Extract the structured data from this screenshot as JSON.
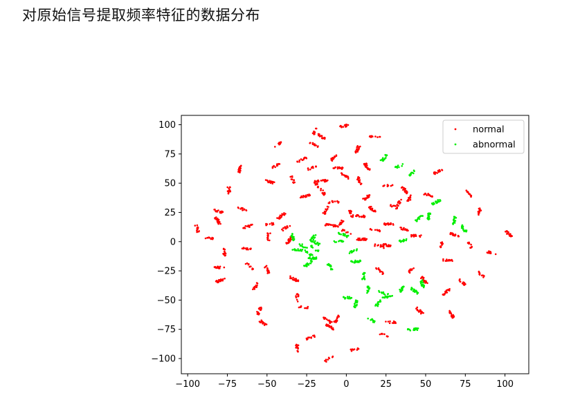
{
  "page": {
    "title": "对原始信号提取频率特征的数据分布"
  },
  "chart_data": {
    "type": "scatter",
    "title": "",
    "xlabel": "",
    "ylabel": "",
    "xlim": [
      -104,
      115
    ],
    "ylim": [
      -113,
      108
    ],
    "xticks": [
      -100,
      -75,
      -50,
      -25,
      0,
      25,
      50,
      75,
      100
    ],
    "xtick_labels": [
      "−100",
      "−75",
      "−50",
      "−25",
      "0",
      "25",
      "50",
      "75",
      "100"
    ],
    "yticks": [
      100,
      75,
      50,
      25,
      0,
      -25,
      -50,
      -75,
      -100
    ],
    "ytick_labels": [
      "100",
      "75",
      "50",
      "25",
      "0",
      "−25",
      "−50",
      "−75",
      "−100"
    ],
    "grid": false,
    "legend_position": "top-right",
    "series": [
      {
        "name": "normal",
        "color": "#ff0000",
        "marker": "small-dot",
        "clusters": [
          [
            -94,
            11
          ],
          [
            -87,
            3
          ],
          [
            -81,
            18
          ],
          [
            -81,
            26
          ],
          [
            -79,
            -33
          ],
          [
            -80,
            -22
          ],
          [
            -77,
            -9
          ],
          [
            -74,
            44
          ],
          [
            -67,
            62
          ],
          [
            -66,
            28
          ],
          [
            -62,
            13
          ],
          [
            -63,
            -6
          ],
          [
            -61,
            -21
          ],
          [
            -57,
            -38
          ],
          [
            -55,
            -59
          ],
          [
            -52,
            -70
          ],
          [
            -50,
            -24
          ],
          [
            -49,
            4
          ],
          [
            -48,
            15
          ],
          [
            -48,
            51
          ],
          [
            -44,
            65
          ],
          [
            -43,
            83
          ],
          [
            -41,
            22
          ],
          [
            -38,
            12
          ],
          [
            -36,
            1
          ],
          [
            -33,
            -32
          ],
          [
            -31,
            -48
          ],
          [
            -27,
            -56
          ],
          [
            -34,
            53
          ],
          [
            -28,
            70
          ],
          [
            -26,
            39
          ],
          [
            -22,
            63
          ],
          [
            -19,
            49
          ],
          [
            -15,
            52
          ],
          [
            -15,
            43
          ],
          [
            -13,
            27
          ],
          [
            -10,
            14
          ],
          [
            -8,
            34
          ],
          [
            -8,
            72
          ],
          [
            -5,
            63
          ],
          [
            -4,
            15
          ],
          [
            -1,
            99
          ],
          [
            -1,
            56
          ],
          [
            0,
            8
          ],
          [
            3,
            24
          ],
          [
            7,
            79
          ],
          [
            8,
            52
          ],
          [
            9,
            22
          ],
          [
            10,
            2
          ],
          [
            13,
            64
          ],
          [
            13,
            38
          ],
          [
            16,
            28
          ],
          [
            18,
            10
          ],
          [
            18,
            90
          ],
          [
            21,
            -4
          ],
          [
            21,
            -25
          ],
          [
            25,
            -3
          ],
          [
            27,
            15
          ],
          [
            26,
            48
          ],
          [
            28,
            -69
          ],
          [
            30,
            30
          ],
          [
            33,
            33
          ],
          [
            36,
            11
          ],
          [
            37,
            44
          ],
          [
            40,
            37
          ],
          [
            41,
            -24
          ],
          [
            44,
            5
          ],
          [
            46,
            -59
          ],
          [
            49,
            -33
          ],
          [
            52,
            40
          ],
          [
            58,
            60
          ],
          [
            60,
            -2
          ],
          [
            63,
            -43
          ],
          [
            64,
            -16
          ],
          [
            66,
            -62
          ],
          [
            68,
            6
          ],
          [
            73,
            -35
          ],
          [
            77,
            41
          ],
          [
            78,
            -3
          ],
          [
            84,
            26
          ],
          [
            85,
            -28
          ],
          [
            92,
            -10
          ],
          [
            102,
            7
          ],
          [
            -20,
            83
          ],
          [
            -16,
            90
          ],
          [
            -20,
            94
          ],
          [
            -6,
            -66
          ],
          [
            -12,
            -67
          ],
          [
            -23,
            -82
          ],
          [
            -11,
            -100
          ],
          [
            -10,
            -73
          ],
          [
            6,
            -92
          ],
          [
            24,
            -80
          ],
          [
            -31,
            -91
          ]
        ],
        "spread": 3
      },
      {
        "name": "abnormal",
        "color": "#00ee00",
        "marker": "small-dot",
        "clusters": [
          [
            -24,
            -10
          ],
          [
            -22,
            -14
          ],
          [
            -20,
            -6
          ],
          [
            -27,
            -4
          ],
          [
            -24,
            -19
          ],
          [
            -19,
            -1
          ],
          [
            -21,
            3
          ],
          [
            -31,
            -7
          ],
          [
            -34,
            4
          ],
          [
            -2,
            6
          ],
          [
            -10,
            -22
          ],
          [
            -5,
            0
          ],
          [
            4,
            -8
          ],
          [
            6,
            -17
          ],
          [
            11,
            -30
          ],
          [
            14,
            -41
          ],
          [
            20,
            -53
          ],
          [
            6,
            -53
          ],
          [
            1,
            -48
          ],
          [
            16,
            -67
          ],
          [
            24,
            72
          ],
          [
            34,
            65
          ],
          [
            42,
            59
          ],
          [
            46,
            20
          ],
          [
            52,
            22
          ],
          [
            57,
            34
          ],
          [
            68,
            18
          ],
          [
            74,
            11
          ],
          [
            35,
            -40
          ],
          [
            43,
            -42
          ],
          [
            48,
            -36
          ],
          [
            36,
            1
          ],
          [
            42,
            -75
          ],
          [
            26,
            -47
          ],
          [
            23,
            -44
          ]
        ],
        "spread": 3
      }
    ]
  }
}
